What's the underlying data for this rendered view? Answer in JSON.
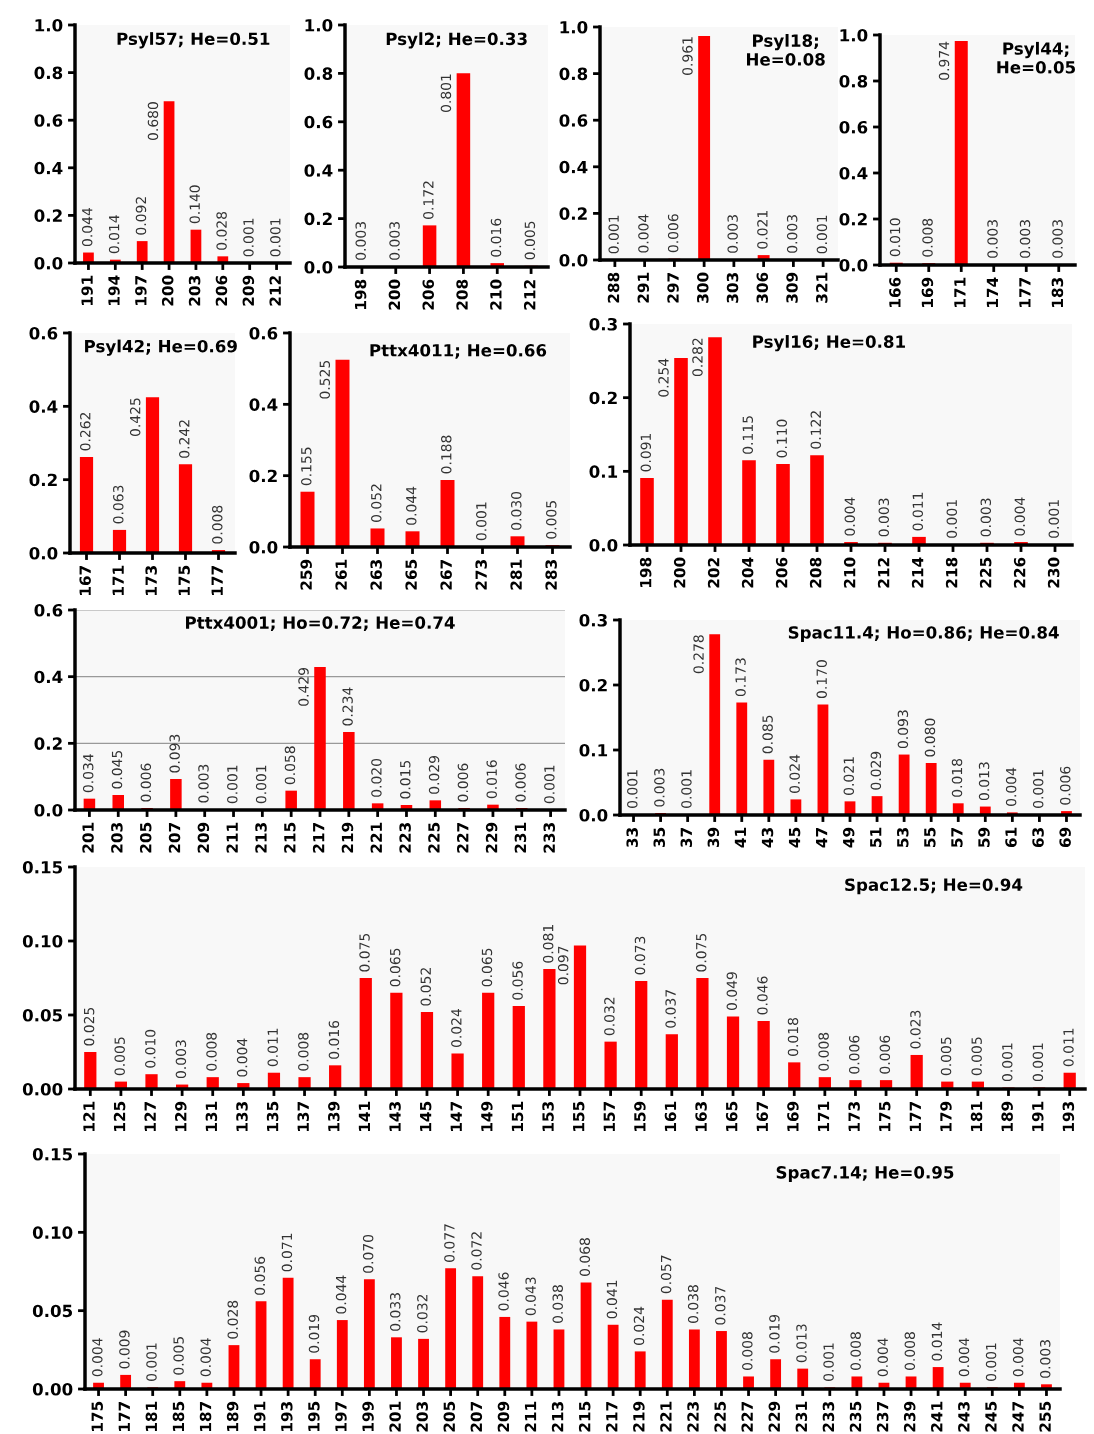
{
  "chart_data": [
    {
      "type": "bar",
      "title": "Psyl57; He=0.51",
      "categories": [
        "191",
        "194",
        "197",
        "200",
        "203",
        "206",
        "209",
        "212"
      ],
      "values": [
        0.044,
        0.014,
        0.092,
        0.68,
        0.14,
        0.028,
        0.001,
        0.001
      ],
      "value_labels": [
        "0.044",
        "0.014",
        "0.092",
        "0.680",
        "0.140",
        "0.028",
        "0.001",
        "0.001"
      ],
      "color": "#ff0000",
      "ylim": [
        0,
        1.0
      ],
      "yticks": [
        {
          "value": 0,
          "label": "0.0"
        },
        0.2,
        0.4,
        0.6,
        0.8,
        {
          "value": 1,
          "label": "1.0"
        }
      ],
      "grid": false
    },
    {
      "type": "bar",
      "title": "Psyl2; He=0.33",
      "categories": [
        "198",
        "200",
        "206",
        "208",
        "210",
        "212"
      ],
      "values": [
        0.003,
        0.003,
        0.172,
        0.801,
        0.016,
        0.005
      ],
      "value_labels": [
        "0.003",
        "0.003",
        "0.172",
        "0.801",
        "0.016",
        "0.005"
      ],
      "color": "#ff0000",
      "ylim": [
        0,
        1.0
      ],
      "yticks": [
        {
          "value": 0,
          "label": "0.0"
        },
        0.2,
        0.4,
        0.6,
        0.8,
        {
          "value": 1,
          "label": "1.0"
        }
      ],
      "grid": false
    },
    {
      "type": "bar",
      "title": "Psyl18;\nHe=0.08",
      "categories": [
        "288",
        "291",
        "297",
        "300",
        "303",
        "306",
        "309",
        "321"
      ],
      "values": [
        0.001,
        0.004,
        0.006,
        0.961,
        0.003,
        0.021,
        0.003,
        0.001
      ],
      "value_labels": [
        "0.001",
        "0.004",
        "0.006",
        "0.961",
        "0.003",
        "0.021",
        "0.003",
        "0.001"
      ],
      "color": "#ff0000",
      "ylim": [
        0,
        1.0
      ],
      "yticks": [
        {
          "value": 0,
          "label": "0.0"
        },
        0.2,
        0.4,
        0.6,
        0.8,
        {
          "value": 1,
          "label": "1.0"
        }
      ],
      "grid": false
    },
    {
      "type": "bar",
      "title": "Psyl44;\nHe=0.05",
      "categories": [
        "166",
        "169",
        "171",
        "174",
        "177",
        "183"
      ],
      "values": [
        0.01,
        0.008,
        0.974,
        0.003,
        0.003,
        0.003
      ],
      "value_labels": [
        "0.010",
        "0.008",
        "0.974",
        "0.003",
        "0.003",
        "0.003"
      ],
      "color": "#ff0000",
      "ylim": [
        0,
        1.0
      ],
      "yticks": [
        {
          "value": 0,
          "label": "0.0"
        },
        0.2,
        0.4,
        0.6,
        0.8,
        {
          "value": 1,
          "label": "1.0"
        }
      ],
      "grid": false
    },
    {
      "type": "bar",
      "title": "Psyl42; He=0.69",
      "categories": [
        "167",
        "171",
        "173",
        "175",
        "177"
      ],
      "values": [
        0.262,
        0.063,
        0.425,
        0.242,
        0.008
      ],
      "value_labels": [
        "0.262",
        "0.063",
        "0.425",
        "0.242",
        "0.008"
      ],
      "color": "#ff0000",
      "ylim": [
        0,
        0.6
      ],
      "yticks": [
        {
          "value": 0,
          "label": "0.0"
        },
        0.2,
        0.4,
        0.6
      ],
      "grid": false
    },
    {
      "type": "bar",
      "title": "Pttx4011; He=0.66",
      "categories": [
        "259",
        "261",
        "263",
        "265",
        "267",
        "273",
        "281",
        "283"
      ],
      "values": [
        0.155,
        0.525,
        0.052,
        0.044,
        0.188,
        0.001,
        0.03,
        0.005
      ],
      "value_labels": [
        "0.155",
        "0.525",
        "0.052",
        "0.044",
        "0.188",
        "0.001",
        "0.030",
        "0.005"
      ],
      "color": "#ff0000",
      "ylim": [
        0,
        0.6
      ],
      "yticks": [
        {
          "value": 0,
          "label": "0.0"
        },
        0.2,
        0.4,
        0.6
      ],
      "grid": false
    },
    {
      "type": "bar",
      "title": "Psyl16; He=0.81",
      "categories": [
        "198",
        "200",
        "202",
        "204",
        "206",
        "208",
        "210",
        "212",
        "214",
        "218",
        "225",
        "226",
        "230"
      ],
      "values": [
        0.091,
        0.254,
        0.282,
        0.115,
        0.11,
        0.122,
        0.004,
        0.003,
        0.011,
        0.001,
        0.003,
        0.004,
        0.001
      ],
      "value_labels": [
        "0.091",
        "0.254",
        "0.282",
        "0.115",
        "0.110",
        "0.122",
        "0.004",
        "0.003",
        "0.011",
        "0.001",
        "0.003",
        "0.004",
        "0.001"
      ],
      "color": "#ff0000",
      "ylim": [
        0,
        0.3
      ],
      "yticks": [
        {
          "value": 0,
          "label": "0.0"
        },
        0.1,
        0.2,
        0.3
      ],
      "grid": false
    },
    {
      "type": "bar",
      "title": "Pttx4001; Ho=0.72; He=0.74",
      "categories": [
        "201",
        "203",
        "205",
        "207",
        "209",
        "211",
        "213",
        "215",
        "217",
        "219",
        "221",
        "223",
        "225",
        "227",
        "229",
        "231",
        "233"
      ],
      "values": [
        0.034,
        0.045,
        0.006,
        0.093,
        0.003,
        0.001,
        0.001,
        0.058,
        0.429,
        0.234,
        0.02,
        0.015,
        0.029,
        0.006,
        0.016,
        0.006,
        0.001
      ],
      "value_labels": [
        "0.034",
        "0.045",
        "0.006",
        "0.093",
        "0.003",
        "0.001",
        "0.001",
        "0.058",
        "0.429",
        "0.234",
        "0.020",
        "0.015",
        "0.029",
        "0.006",
        "0.016",
        "0.006",
        "0.001"
      ],
      "color": "#ff0000",
      "ylim": [
        0,
        0.6
      ],
      "yticks": [
        {
          "value": 0,
          "label": "0.0"
        },
        0.2,
        0.4,
        0.6
      ],
      "grid": "y"
    },
    {
      "type": "bar",
      "title": "Spac11.4; Ho=0.86; He=0.84",
      "categories": [
        "33",
        "35",
        "37",
        "39",
        "41",
        "43",
        "45",
        "47",
        "49",
        "51",
        "53",
        "55",
        "57",
        "59",
        "61",
        "63",
        "69"
      ],
      "values": [
        0.001,
        0.003,
        0.001,
        0.278,
        0.173,
        0.085,
        0.024,
        0.17,
        0.021,
        0.029,
        0.093,
        0.08,
        0.018,
        0.013,
        0.004,
        0.001,
        0.006
      ],
      "value_labels": [
        "0.001",
        "0.003",
        "0.001",
        "0.278",
        "0.173",
        "0.085",
        "0.024",
        "0.170",
        "0.021",
        "0.029",
        "0.093",
        "0.080",
        "0.018",
        "0.013",
        "0.004",
        "0.001",
        "0.006"
      ],
      "color": "#ff0000",
      "ylim": [
        0,
        0.3
      ],
      "yticks": [
        {
          "value": 0,
          "label": "0.0"
        },
        0.1,
        0.2,
        0.3
      ],
      "grid": false
    },
    {
      "type": "bar",
      "title": "Spac12.5; He=0.94",
      "categories": [
        "121",
        "125",
        "127",
        "129",
        "131",
        "133",
        "135",
        "137",
        "139",
        "141",
        "143",
        "145",
        "147",
        "149",
        "151",
        "153",
        "155",
        "157",
        "159",
        "161",
        "163",
        "165",
        "167",
        "169",
        "171",
        "173",
        "175",
        "177",
        "179",
        "181",
        "189",
        "191",
        "193"
      ],
      "values": [
        0.025,
        0.005,
        0.01,
        0.003,
        0.008,
        0.004,
        0.011,
        0.008,
        0.016,
        0.075,
        0.065,
        0.052,
        0.024,
        0.065,
        0.056,
        0.081,
        0.097,
        0.032,
        0.073,
        0.037,
        0.075,
        0.049,
        0.046,
        0.018,
        0.008,
        0.006,
        0.006,
        0.023,
        0.005,
        0.005,
        0.001,
        0.001,
        0.011
      ],
      "value_labels": [
        "0.025",
        "0.005",
        "0.010",
        "0.003",
        "0.008",
        "0.004",
        "0.011",
        "0.008",
        "0.016",
        "0.075",
        "0.065",
        "0.052",
        "0.024",
        "0.065",
        "0.056",
        "0.081",
        "0.097",
        "0.032",
        "0.073",
        "0.037",
        "0.075",
        "0.049",
        "0.046",
        "0.018",
        "0.008",
        "0.006",
        "0.006",
        "0.023",
        "0.005",
        "0.005",
        "0.001",
        "0.001",
        "0.011"
      ],
      "color": "#ff0000",
      "ylim": [
        0,
        0.15
      ],
      "yticks": [
        {
          "value": 0,
          "label": "0.00"
        },
        {
          "value": 0.05,
          "label": "0.05"
        },
        {
          "value": 0.1,
          "label": "0.10"
        },
        {
          "value": 0.15,
          "label": "0.15"
        }
      ],
      "grid": false
    },
    {
      "type": "bar",
      "title": "Spac7.14; He=0.95",
      "categories": [
        "175",
        "177",
        "181",
        "185",
        "187",
        "189",
        "191",
        "193",
        "195",
        "197",
        "199",
        "201",
        "203",
        "205",
        "207",
        "209",
        "211",
        "213",
        "215",
        "217",
        "219",
        "221",
        "223",
        "225",
        "227",
        "229",
        "231",
        "233",
        "235",
        "237",
        "239",
        "241",
        "243",
        "245",
        "247",
        "255"
      ],
      "values": [
        0.004,
        0.009,
        0.001,
        0.005,
        0.004,
        0.028,
        0.056,
        0.071,
        0.019,
        0.044,
        0.07,
        0.033,
        0.032,
        0.077,
        0.072,
        0.046,
        0.043,
        0.038,
        0.068,
        0.041,
        0.024,
        0.057,
        0.038,
        0.037,
        0.008,
        0.019,
        0.013,
        0.001,
        0.008,
        0.004,
        0.008,
        0.014,
        0.004,
        0.001,
        0.004,
        0.003
      ],
      "value_labels": [
        "0.004",
        "0.009",
        "0.001",
        "0.005",
        "0.004",
        "0.028",
        "0.056",
        "0.071",
        "0.019",
        "0.044",
        "0.070",
        "0.033",
        "0.032",
        "0.077",
        "0.072",
        "0.046",
        "0.043",
        "0.038",
        "0.068",
        "0.041",
        "0.024",
        "0.057",
        "0.038",
        "0.037",
        "0.008",
        "0.019",
        "0.013",
        "0.001",
        "0.008",
        "0.004",
        "0.008",
        "0.014",
        "0.004",
        "0.001",
        "0.004",
        "0.003"
      ],
      "color": "#ff0000",
      "ylim": [
        0,
        0.15
      ],
      "yticks": [
        {
          "value": 0,
          "label": "0.00"
        },
        {
          "value": 0.05,
          "label": "0.05"
        },
        {
          "value": 0.1,
          "label": "0.10"
        },
        {
          "value": 0.15,
          "label": "0.15"
        }
      ],
      "grid": false
    }
  ]
}
